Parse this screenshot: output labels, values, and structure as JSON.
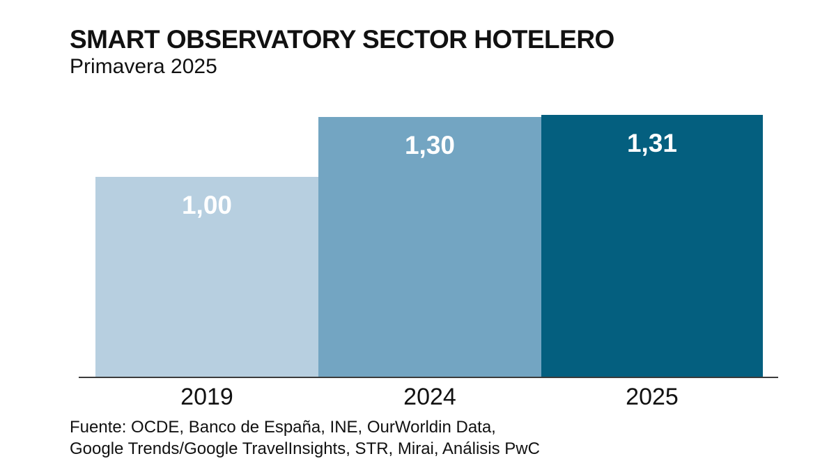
{
  "header": {
    "title": "SMART OBSERVATORY SECTOR HOTELERO",
    "subtitle": "Primavera 2025"
  },
  "chart_data": {
    "type": "bar",
    "title": "SMART OBSERVATORY SECTOR HOTELERO",
    "subtitle": "Primavera 2025",
    "categories": [
      "2019",
      "2024",
      "2025"
    ],
    "values": [
      1.0,
      1.3,
      1.31
    ],
    "value_labels": [
      "1,00",
      "1,30",
      "1,31"
    ],
    "bar_colors": [
      "#b7cfe0",
      "#73a5c2",
      "#045f7f"
    ],
    "value_label_color": "#ffffff",
    "axis_line_color": "#3b3b3b",
    "xlabel": "",
    "ylabel": "",
    "ylim": [
      0,
      1.31
    ],
    "grid": false,
    "legend": false,
    "value_labels_position": "inside-top"
  },
  "footer": {
    "source_line_1": "Fuente: OCDE, Banco de España, INE, OurWorldin Data,",
    "source_line_2": "Google Trends/Google TravelInsights, STR, Mirai, Análisis PwC"
  }
}
